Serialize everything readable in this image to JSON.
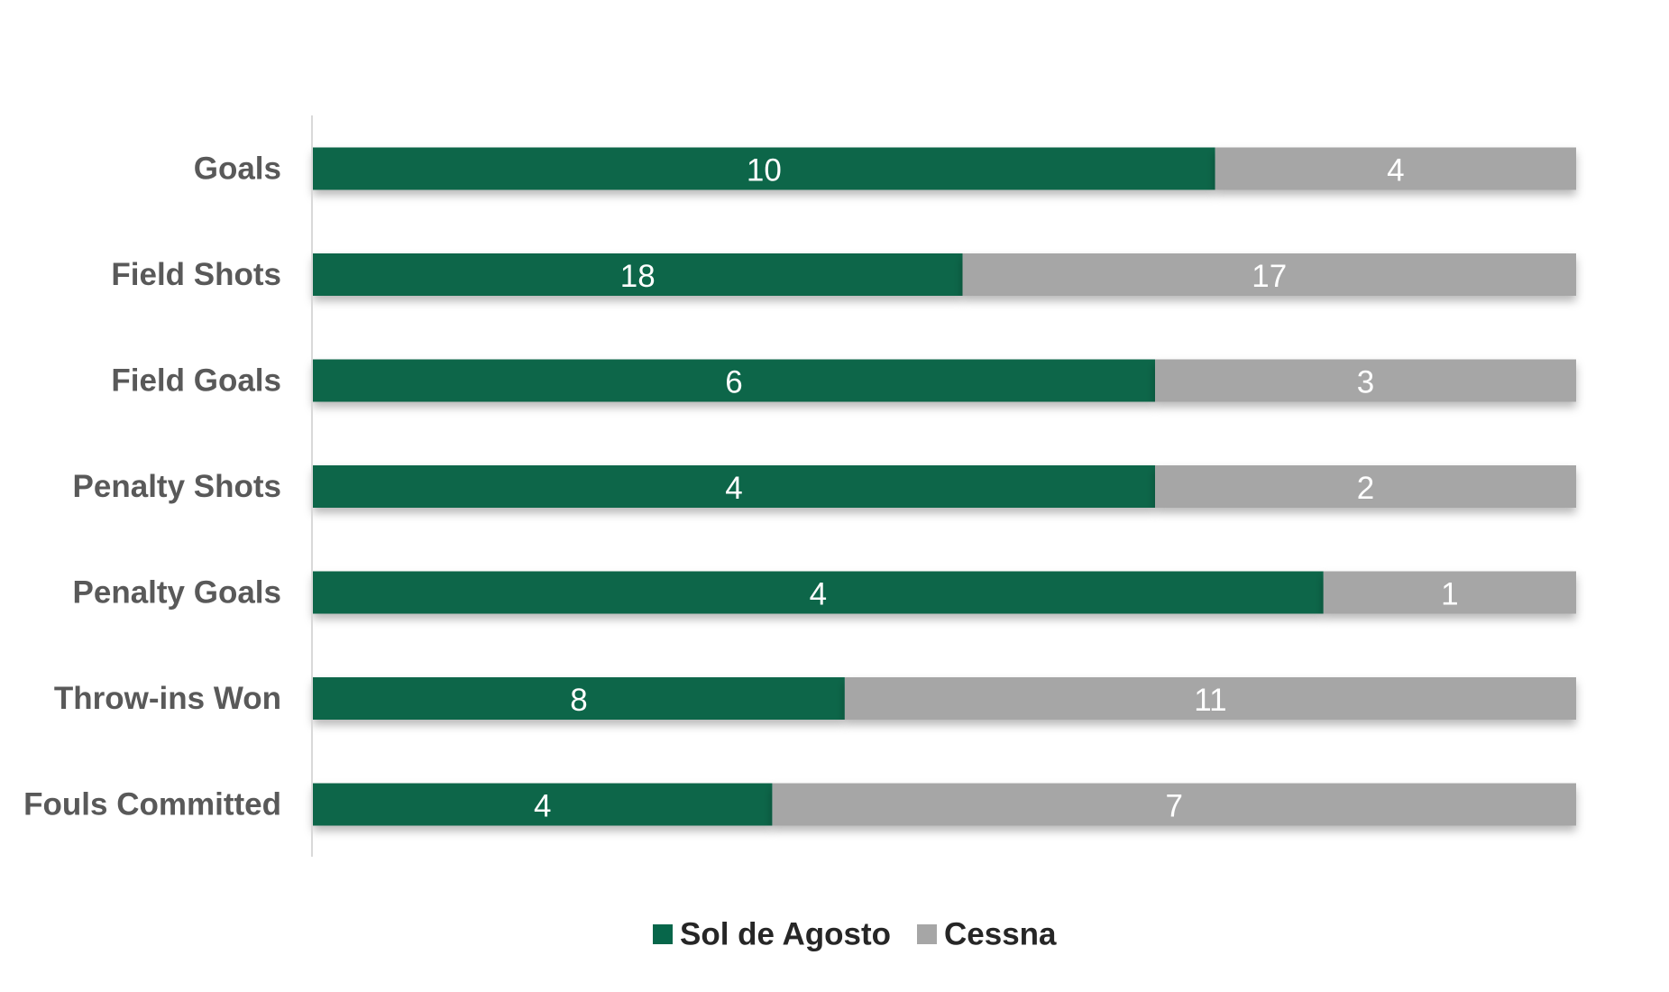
{
  "chart_data": {
    "type": "bar",
    "orientation": "horizontal",
    "stacked": "percent",
    "categories": [
      "Goals",
      "Field Shots",
      "Field Goals",
      "Penalty Shots",
      "Penalty Goals",
      "Throw-ins Won",
      "Fouls Committed"
    ],
    "series": [
      {
        "name": "Sol de Agosto",
        "color": "#07664A",
        "values": [
          10,
          18,
          6,
          4,
          4,
          8,
          4
        ]
      },
      {
        "name": "Cessna",
        "color": "#A6A6A6",
        "values": [
          4,
          17,
          3,
          2,
          1,
          11,
          7
        ]
      }
    ],
    "title": "",
    "xlabel": "",
    "ylabel": "",
    "xlim": [
      0,
      1
    ],
    "grid": false,
    "legend": "bottom",
    "data_labels": true
  }
}
